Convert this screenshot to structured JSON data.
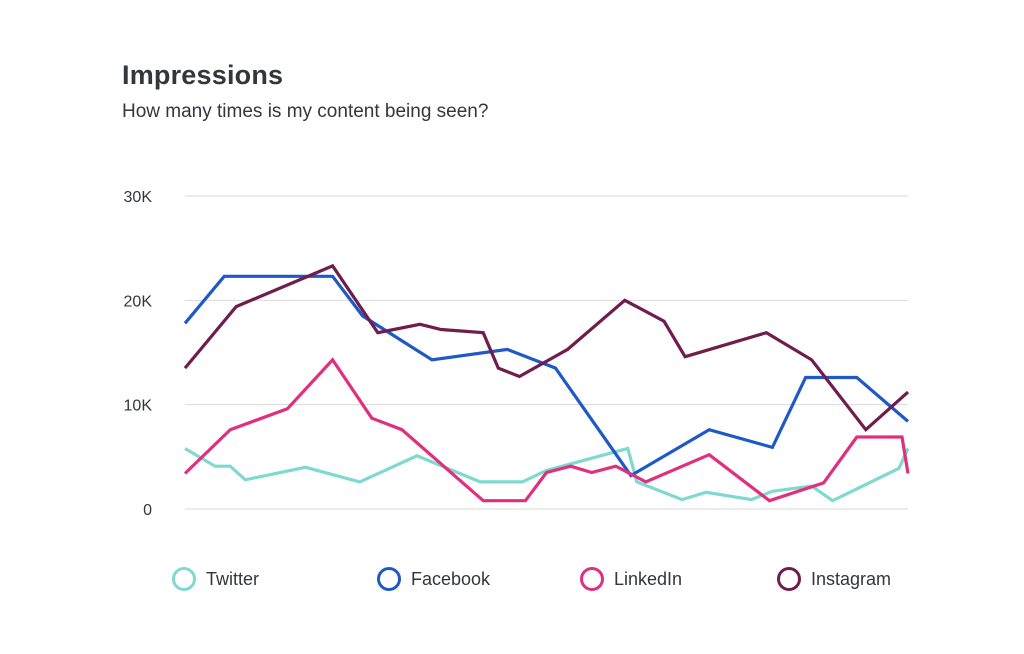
{
  "header": {
    "title": "Impressions",
    "subtitle": "How many times is my content being seen?"
  },
  "chart_data": {
    "type": "line",
    "title": "Impressions",
    "subtitle": "How many times is my content being seen?",
    "xlabel": "",
    "ylabel": "",
    "ylim": [
      0,
      30000
    ],
    "yticks": [
      {
        "value": 0,
        "label": "0"
      },
      {
        "value": 10000,
        "label": "10K"
      },
      {
        "value": 20000,
        "label": "20K"
      },
      {
        "value": 30000,
        "label": "30K"
      }
    ],
    "grid": true,
    "legend_position": "bottom",
    "series": [
      {
        "name": "Twitter",
        "color": "#7fd9d1",
        "points": [
          [
            0,
            5800
          ],
          [
            1,
            4100
          ],
          [
            1.5,
            4100
          ],
          [
            2,
            2800
          ],
          [
            4,
            4000
          ],
          [
            5.8,
            2600
          ],
          [
            7.7,
            5100
          ],
          [
            9.8,
            2600
          ],
          [
            11.2,
            2600
          ],
          [
            12,
            3700
          ],
          [
            14.7,
            5800
          ],
          [
            15,
            2600
          ],
          [
            16.5,
            900
          ],
          [
            17.3,
            1600
          ],
          [
            18.8,
            900
          ],
          [
            19.5,
            1700
          ],
          [
            20.8,
            2200
          ],
          [
            21.5,
            800
          ],
          [
            23.7,
            3900
          ],
          [
            24,
            5800
          ]
        ]
      },
      {
        "name": "Facebook",
        "color": "#1e59c7",
        "points": [
          [
            0,
            17800
          ],
          [
            1.3,
            22300
          ],
          [
            4.9,
            22300
          ],
          [
            5.9,
            18500
          ],
          [
            8.2,
            14300
          ],
          [
            10.7,
            15300
          ],
          [
            12.3,
            13500
          ],
          [
            14.8,
            3200
          ],
          [
            17.4,
            7600
          ],
          [
            19.5,
            5900
          ],
          [
            20.6,
            12600
          ],
          [
            22.3,
            12600
          ],
          [
            24,
            8400
          ]
        ]
      },
      {
        "name": "LinkedIn",
        "color": "#e0307d",
        "points": [
          [
            0,
            3400
          ],
          [
            1.5,
            7600
          ],
          [
            3.4,
            9600
          ],
          [
            4.9,
            14300
          ],
          [
            6.2,
            8700
          ],
          [
            7.2,
            7600
          ],
          [
            9.9,
            800
          ],
          [
            11.3,
            800
          ],
          [
            12,
            3500
          ],
          [
            12.8,
            4100
          ],
          [
            13.5,
            3500
          ],
          [
            14.3,
            4100
          ],
          [
            15.3,
            2600
          ],
          [
            17.4,
            5200
          ],
          [
            19.4,
            800
          ],
          [
            21.2,
            2500
          ],
          [
            22.3,
            6900
          ],
          [
            23.8,
            6900
          ],
          [
            24,
            3400
          ]
        ]
      },
      {
        "name": "Instagram",
        "color": "#6e1d4c",
        "points": [
          [
            0,
            13500
          ],
          [
            1.7,
            19400
          ],
          [
            4.9,
            23300
          ],
          [
            6.4,
            16900
          ],
          [
            7.8,
            17700
          ],
          [
            8.5,
            17200
          ],
          [
            9.9,
            16900
          ],
          [
            10.4,
            13500
          ],
          [
            11.1,
            12700
          ],
          [
            12.7,
            15300
          ],
          [
            14.6,
            20000
          ],
          [
            15.9,
            18000
          ],
          [
            16.6,
            14600
          ],
          [
            19.3,
            16900
          ],
          [
            20.8,
            14300
          ],
          [
            22.6,
            7600
          ],
          [
            24,
            11200
          ]
        ]
      }
    ]
  }
}
